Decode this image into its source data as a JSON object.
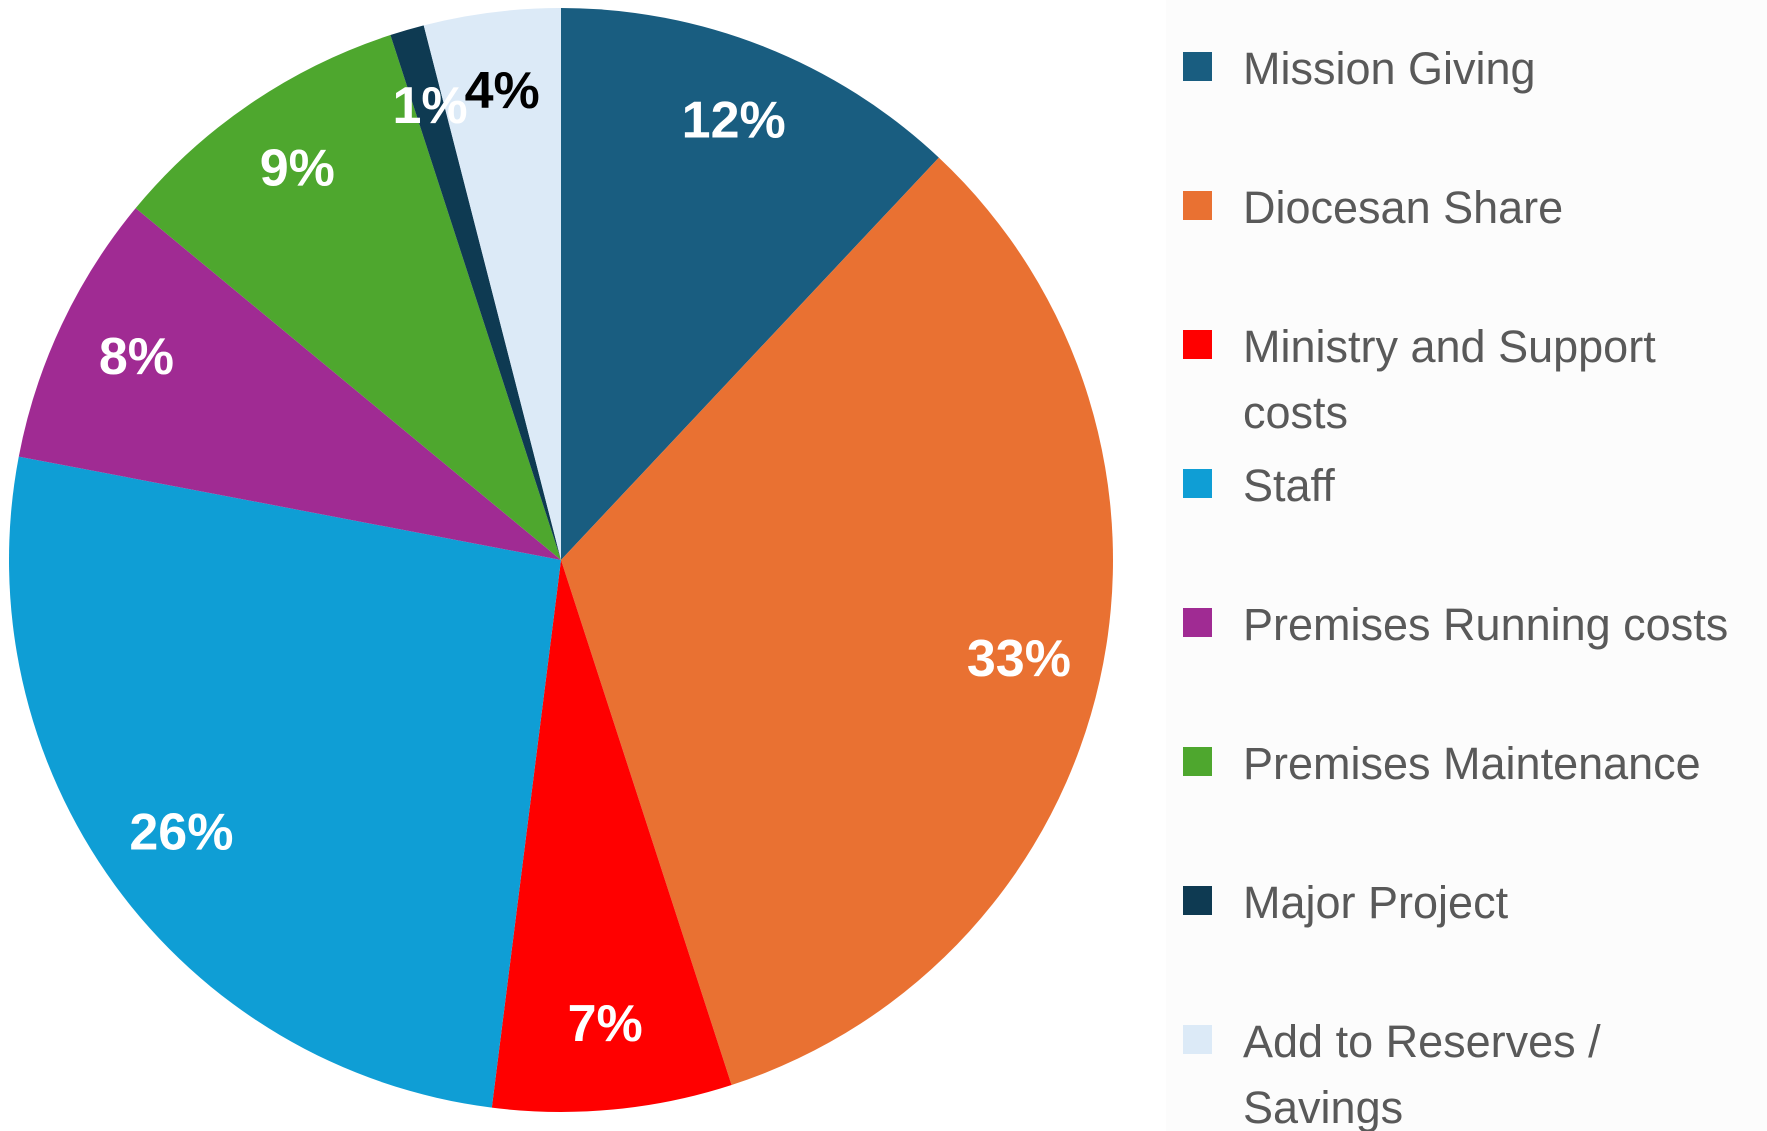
{
  "chart_data": {
    "type": "pie",
    "categories": [
      "Mission Giving",
      "Diocesan Share",
      "Ministry and Support costs",
      "Staff",
      "Premises Running costs",
      "Premises Maintenance",
      "Major Project",
      "Add to Reserves / Savings"
    ],
    "values": [
      12,
      33,
      7,
      26,
      8,
      9,
      1,
      4
    ],
    "value_labels": [
      "12%",
      "33%",
      "7%",
      "26%",
      "8%",
      "9%",
      "1%",
      "4%"
    ],
    "colors": [
      "#195d80",
      "#e97132",
      "#ff0000",
      "#0f9ed5",
      "#a02b93",
      "#4ea72e",
      "#0e3a52",
      "#dceaf7"
    ],
    "legend": "right"
  }
}
